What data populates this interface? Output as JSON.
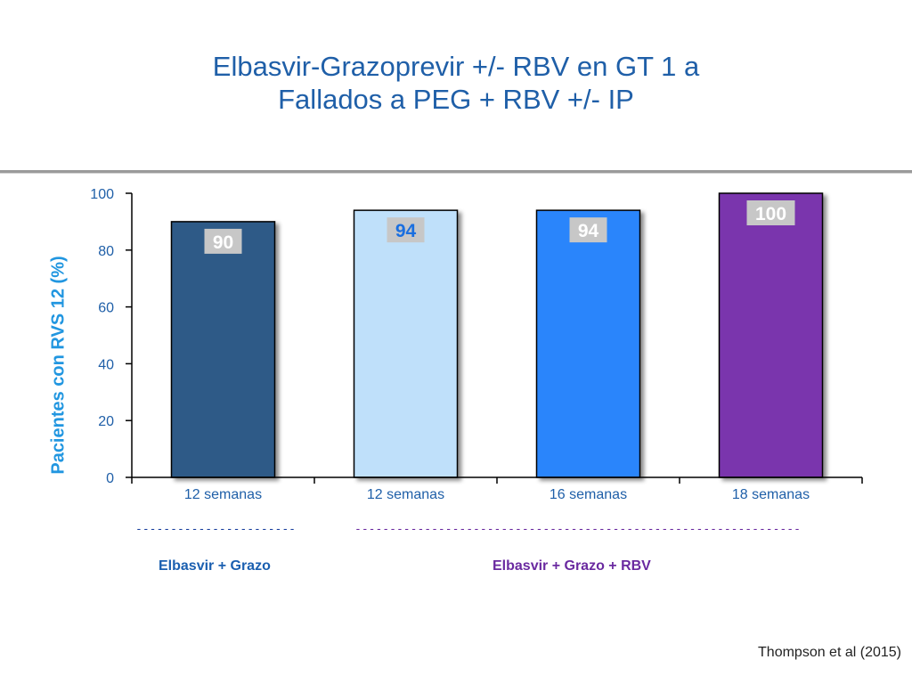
{
  "title": {
    "line1": "Elbasvir-Grazoprevir +/- RBV en GT 1 a",
    "line2": "Fallados a PEG + RBV +/- IP"
  },
  "groups": {
    "left_dashes": "-----------------------",
    "left_label": "Elbasvir + Grazo",
    "right_dashes": "----------------------------------------------------------------",
    "right_label": "Elbasvir  + Grazo + RBV"
  },
  "citation": "Thompson et al (2015)",
  "colors": {
    "title": "#1f5fa8",
    "axis_text": "#1f5fa8",
    "ylabel": "#2196e0",
    "value_label_bg": "#c7c7c7",
    "value_label_text": "#ffffff"
  },
  "chart_data": {
    "type": "bar",
    "categories": [
      "12 semanas",
      "12 semanas",
      "16 semanas",
      "18 semanas"
    ],
    "values": [
      90,
      94,
      94,
      100
    ],
    "data_labels": [
      "90",
      "94",
      "94",
      "100"
    ],
    "bar_colors": [
      "#2e5a87",
      "#bfe0fa",
      "#2b85fb",
      "#7a35ad"
    ],
    "label_colors": [
      "#ffffff",
      "#1a6fe0",
      "#ffffff",
      "#ffffff"
    ],
    "ylabel": "Pacientes con RVS  12 (%)",
    "ylim": [
      0,
      100
    ],
    "yticks": [
      0,
      20,
      40,
      60,
      80,
      100
    ],
    "ytick_labels": [
      "0",
      "20",
      "40",
      "60",
      "80",
      "100"
    ],
    "grid": false,
    "legend": "none"
  }
}
